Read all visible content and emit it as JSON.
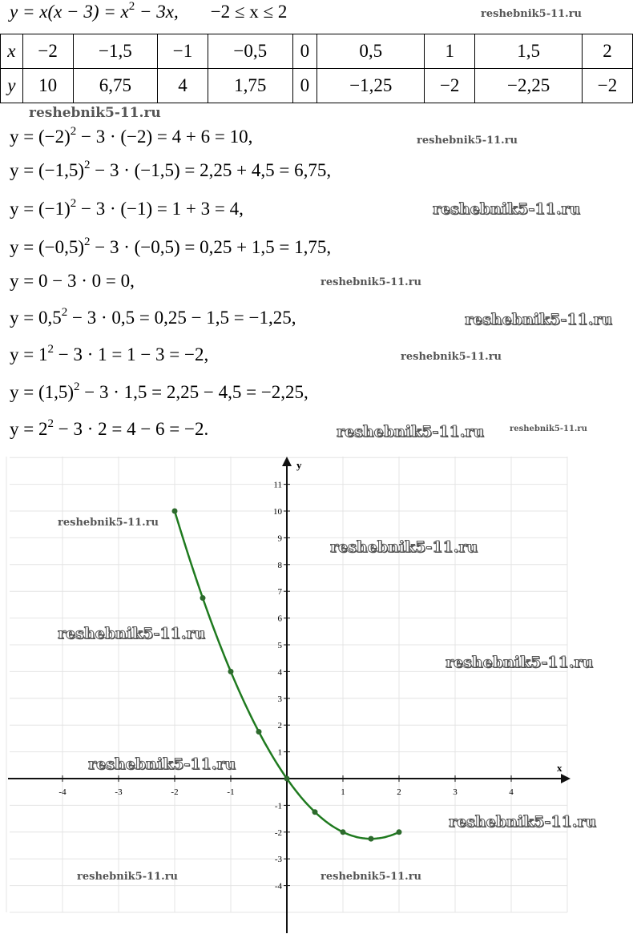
{
  "heading": {
    "lhs": "y = x(x − 3) = x",
    "exp": "2",
    "rhs": " − 3x,",
    "domain": "−2 ≤ x ≤ 2"
  },
  "table": {
    "x_label": "x",
    "y_label": "y",
    "x": [
      "−2",
      "−1,5",
      "−1",
      "−0,5",
      "0",
      "0,5",
      "1",
      "1,5",
      "2"
    ],
    "y": [
      "10",
      "6,75",
      "4",
      "1,75",
      "0",
      "−1,25",
      "−2",
      "−2,25",
      "−2"
    ]
  },
  "calc": [
    {
      "a": "y = (−2)",
      "e": "2",
      "b": " − 3 · (−2) = 4 + 6 = 10,"
    },
    {
      "a": "y = (−1,5)",
      "e": "2",
      "b": " − 3 · (−1,5) = 2,25 + 4,5 = 6,75,"
    },
    {
      "a": "y = (−1)",
      "e": "2",
      "b": " − 3 · (−1) = 1 + 3 = 4,"
    },
    {
      "a": "y = (−0,5)",
      "e": "2",
      "b": " − 3 · (−0,5) = 0,25 + 1,5 = 1,75,"
    },
    {
      "a": "y = 0 − 3 · 0 = 0,",
      "e": "",
      "b": ""
    },
    {
      "a": "y = 0,5",
      "e": "2",
      "b": " − 3 · 0,5 = 0,25 − 1,5 = −1,25,"
    },
    {
      "a": "y = 1",
      "e": "2",
      "b": " − 3 · 1 = 1 − 3 = −2,"
    },
    {
      "a": "y = (1,5)",
      "e": "2",
      "b": " − 3 · 1,5 = 2,25 − 4,5 = −2,25,"
    },
    {
      "a": "y = 2",
      "e": "2",
      "b": " − 3 · 2 = 4 − 6 = −2."
    }
  ],
  "watermark": "reshebnik5-11.ru",
  "chart_data": {
    "type": "line",
    "xlabel": "x",
    "ylabel": "y",
    "xlim": [
      -5,
      5
    ],
    "ylim": [
      -5,
      12
    ],
    "x_ticks": [
      "-4",
      "-3",
      "-2",
      "-1",
      "1",
      "2",
      "3",
      "4"
    ],
    "y_ticks": [
      "11",
      "10",
      "9",
      "8",
      "7",
      "6",
      "5",
      "4",
      "3",
      "2",
      "1",
      "-1",
      "-2",
      "-3",
      "-4"
    ],
    "grid": true,
    "series": [
      {
        "x": [
          -2,
          -1.5,
          -1,
          -0.5,
          0,
          0.5,
          1,
          1.5,
          2
        ],
        "y": [
          10,
          6.75,
          4,
          1.75,
          0,
          -1.25,
          -2,
          -2.25,
          -2
        ]
      }
    ],
    "color": "#1f7a1f"
  }
}
